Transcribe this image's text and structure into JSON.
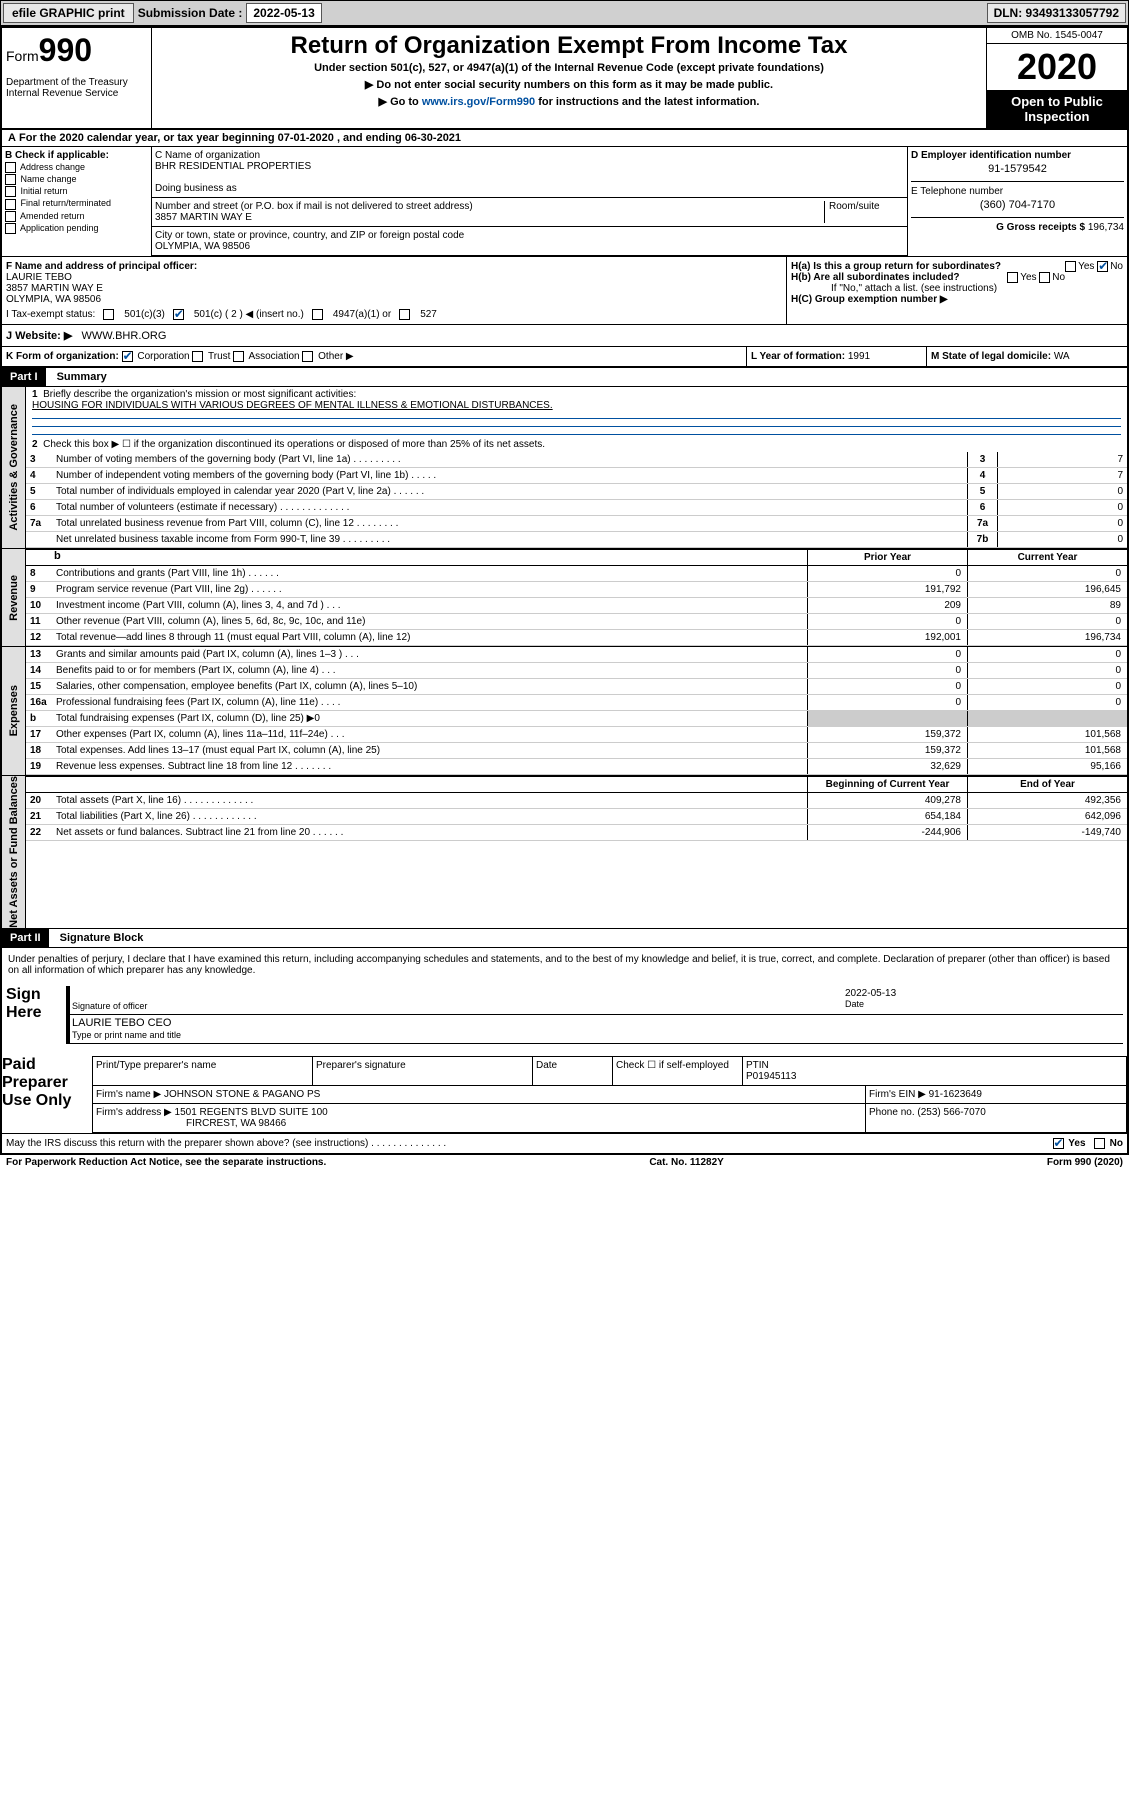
{
  "toolbar": {
    "efile": "efile GRAPHIC print",
    "submission_label": "Submission Date :",
    "submission_date": "2022-05-13",
    "dln": "DLN: 93493133057792"
  },
  "header": {
    "form_prefix": "Form",
    "form_number": "990",
    "dept": "Department of the Treasury\nInternal Revenue Service",
    "title": "Return of Organization Exempt From Income Tax",
    "subtitle": "Under section 501(c), 527, or 4947(a)(1) of the Internal Revenue Code (except private foundations)",
    "note1": "▶ Do not enter social security numbers on this form as it may be made public.",
    "note2_pre": "▶ Go to ",
    "note2_link": "www.irs.gov/Form990",
    "note2_post": " for instructions and the latest information.",
    "omb": "OMB No. 1545-0047",
    "year": "2020",
    "inspection": "Open to Public Inspection"
  },
  "line_a": "For the 2020 calendar year, or tax year beginning 07-01-2020    , and ending 06-30-2021",
  "section_b": {
    "label": "B Check if applicable:",
    "opts": [
      "Address change",
      "Name change",
      "Initial return",
      "Final return/terminated",
      "Amended return",
      "Application pending"
    ]
  },
  "section_c": {
    "name_label": "C Name of organization",
    "name": "BHR RESIDENTIAL PROPERTIES",
    "dba_label": "Doing business as",
    "street_label": "Number and street (or P.O. box if mail is not delivered to street address)",
    "room_label": "Room/suite",
    "street": "3857 MARTIN WAY E",
    "city_label": "City or town, state or province, country, and ZIP or foreign postal code",
    "city": "OLYMPIA, WA  98506"
  },
  "section_d": {
    "label": "D Employer identification number",
    "value": "91-1579542"
  },
  "section_e": {
    "label": "E Telephone number",
    "value": "(360) 704-7170"
  },
  "section_g": {
    "label": "G Gross receipts $",
    "value": "196,734"
  },
  "section_f": {
    "label": "F  Name and address of principal officer:",
    "name": "LAURIE TEBO",
    "street": "3857 MARTIN WAY E",
    "city": "OLYMPIA, WA  98506"
  },
  "section_h": {
    "h_a": "H(a)  Is this a group return for subordinates?",
    "h_b": "H(b)  Are all subordinates included?",
    "h_note": "If \"No,\" attach a list. (see instructions)",
    "h_c": "H(C)  Group exemption number ▶",
    "yes": "Yes",
    "no": "No"
  },
  "tax_exempt": {
    "i_label": "I  Tax-exempt status:",
    "opts": [
      "501(c)(3)",
      "501(c) ( 2 ) ◀ (insert no.)",
      "4947(a)(1) or",
      "527"
    ]
  },
  "website": {
    "label": "J  Website: ▶",
    "value": "WWW.BHR.ORG"
  },
  "section_k": {
    "label": "K Form of organization:",
    "opts": [
      "Corporation",
      "Trust",
      "Association",
      "Other ▶"
    ]
  },
  "section_l": {
    "label": "L Year of formation:",
    "value": "1991"
  },
  "section_m": {
    "label": "M State of legal domicile:",
    "value": "WA"
  },
  "part1": {
    "header": "Part I",
    "title": "Summary"
  },
  "summary": {
    "q1": "Briefly describe the organization's mission or most significant activities:",
    "mission": "HOUSING FOR INDIVIDUALS WITH VARIOUS DEGREES OF MENTAL ILLNESS & EMOTIONAL DISTURBANCES.",
    "q2": "Check this box ▶ ☐  if the organization discontinued its operations or disposed of more than 25% of its net assets.",
    "lines_governance": [
      {
        "n": "3",
        "t": "Number of voting members of the governing body (Part VI, line 1a)   .   .   .   .   .   .   .   .   .",
        "box": "3",
        "v": "7"
      },
      {
        "n": "4",
        "t": "Number of independent voting members of the governing body (Part VI, line 1b)  .   .   .   .   .",
        "box": "4",
        "v": "7"
      },
      {
        "n": "5",
        "t": "Total number of individuals employed in calendar year 2020 (Part V, line 2a)   .   .   .   .   .   .",
        "box": "5",
        "v": "0"
      },
      {
        "n": "6",
        "t": "Total number of volunteers (estimate if necessary)   .   .   .   .   .   .   .   .   .   .   .   .   .",
        "box": "6",
        "v": "0"
      },
      {
        "n": "7a",
        "t": "Total unrelated business revenue from Part VIII, column (C), line 12  .   .   .   .   .   .   .   .",
        "box": "7a",
        "v": "0"
      },
      {
        "n": "",
        "t": "Net unrelated business taxable income from Form 990-T, line 39   .   .   .   .   .   .   .   .   .",
        "box": "7b",
        "v": "0"
      }
    ],
    "col_prior": "Prior Year",
    "col_current": "Current Year",
    "lines_revenue": [
      {
        "n": "8",
        "t": "Contributions and grants (Part VIII, line 1h)   .   .   .   .   .   .",
        "p": "0",
        "c": "0"
      },
      {
        "n": "9",
        "t": "Program service revenue (Part VIII, line 2g)   .   .   .   .   .   .",
        "p": "191,792",
        "c": "196,645"
      },
      {
        "n": "10",
        "t": "Investment income (Part VIII, column (A), lines 3, 4, and 7d )   .   .   .",
        "p": "209",
        "c": "89"
      },
      {
        "n": "11",
        "t": "Other revenue (Part VIII, column (A), lines 5, 6d, 8c, 9c, 10c, and 11e)",
        "p": "0",
        "c": "0"
      },
      {
        "n": "12",
        "t": "Total revenue—add lines 8 through 11 (must equal Part VIII, column (A), line 12)",
        "p": "192,001",
        "c": "196,734"
      }
    ],
    "lines_expenses": [
      {
        "n": "13",
        "t": "Grants and similar amounts paid (Part IX, column (A), lines 1–3 )   .   .   .",
        "p": "0",
        "c": "0"
      },
      {
        "n": "14",
        "t": "Benefits paid to or for members (Part IX, column (A), line 4)   .   .   .",
        "p": "0",
        "c": "0"
      },
      {
        "n": "15",
        "t": "Salaries, other compensation, employee benefits (Part IX, column (A), lines 5–10)",
        "p": "0",
        "c": "0"
      },
      {
        "n": "16a",
        "t": "Professional fundraising fees (Part IX, column (A), line 11e)   .   .   .   .",
        "p": "0",
        "c": "0"
      },
      {
        "n": "b",
        "t": "Total fundraising expenses (Part IX, column (D), line 25) ▶0",
        "p": "",
        "c": ""
      },
      {
        "n": "17",
        "t": "Other expenses (Part IX, column (A), lines 11a–11d, 11f–24e)   .   .   .",
        "p": "159,372",
        "c": "101,568"
      },
      {
        "n": "18",
        "t": "Total expenses. Add lines 13–17 (must equal Part IX, column (A), line 25)",
        "p": "159,372",
        "c": "101,568"
      },
      {
        "n": "19",
        "t": "Revenue less expenses. Subtract line 18 from line 12   .   .   .   .   .   .   .",
        "p": "32,629",
        "c": "95,166"
      }
    ],
    "col_begin": "Beginning of Current Year",
    "col_end": "End of Year",
    "lines_net": [
      {
        "n": "20",
        "t": "Total assets (Part X, line 16)   .   .   .   .   .   .   .   .   .   .   .   .   .",
        "p": "409,278",
        "c": "492,356"
      },
      {
        "n": "21",
        "t": "Total liabilities (Part X, line 26)   .   .   .   .   .   .   .   .   .   .   .   .",
        "p": "654,184",
        "c": "642,096"
      },
      {
        "n": "22",
        "t": "Net assets or fund balances. Subtract line 21 from line 20  .   .   .   .   .   .",
        "p": "-244,906",
        "c": "-149,740"
      }
    ]
  },
  "side_tabs": {
    "gov": "Activities & Governance",
    "rev": "Revenue",
    "exp": "Expenses",
    "net": "Net Assets or Fund Balances"
  },
  "part2": {
    "header": "Part II",
    "title": "Signature Block"
  },
  "perjury": "Under penalties of perjury, I declare that I have examined this return, including accompanying schedules and statements, and to the best of my knowledge and belief, it is true, correct, and complete. Declaration of preparer (other than officer) is based on all information of which preparer has any knowledge.",
  "sign": {
    "sign_here": "Sign Here",
    "sig_officer": "Signature of officer",
    "date": "Date",
    "date_val": "2022-05-13",
    "name": "LAURIE TEBO CEO",
    "name_label": "Type or print name and title"
  },
  "preparer": {
    "label": "Paid Preparer Use Only",
    "print_name": "Print/Type preparer's name",
    "sig": "Preparer's signature",
    "date": "Date",
    "check": "Check ☐ if self-employed",
    "ptin_label": "PTIN",
    "ptin": "P01945113",
    "firm_name_label": "Firm's name      ▶",
    "firm_name": "JOHNSON STONE & PAGANO PS",
    "firm_ein_label": "Firm's EIN ▶",
    "firm_ein": "91-1623649",
    "firm_addr_label": "Firm's address ▶",
    "firm_addr": "1501 REGENTS BLVD SUITE 100",
    "firm_city": "FIRCREST, WA  98466",
    "phone_label": "Phone no.",
    "phone": "(253) 566-7070"
  },
  "footer": {
    "discuss": "May the IRS discuss this return with the preparer shown above? (see instructions)   .   .   .   .   .   .   .   .   .   .   .   .   .   .",
    "yes": "Yes",
    "no": "No",
    "pra": "For Paperwork Reduction Act Notice, see the separate instructions.",
    "cat": "Cat. No. 11282Y",
    "form": "Form 990 (2020)"
  }
}
